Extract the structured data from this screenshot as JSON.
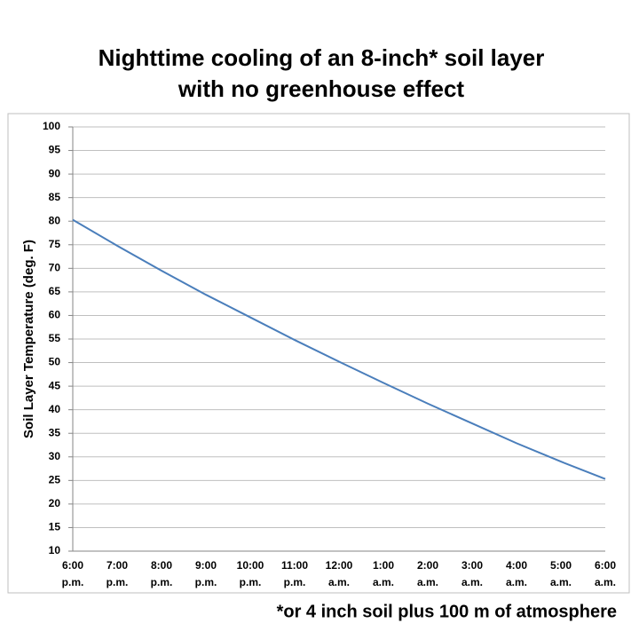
{
  "chart_data": {
    "type": "line",
    "title": [
      "Nighttime cooling of an 8-inch* soil layer",
      "with no greenhouse effect"
    ],
    "y_label": "Soil Layer Temperature (deg. F)",
    "footnote": "*or 4 inch soil plus 100 m of atmosphere",
    "categories": [
      "6:00\np.m.",
      "7:00\np.m.",
      "8:00\np.m.",
      "9:00\np.m.",
      "10:00\np.m.",
      "11:00\np.m.",
      "12:00\na.m.",
      "1:00\na.m.",
      "2:00\na.m.",
      "3:00\na.m.",
      "4:00\na.m.",
      "5:00\na.m.",
      "6:00\na.m."
    ],
    "values": [
      80.3,
      74.8,
      69.5,
      64.4,
      59.6,
      54.8,
      50.2,
      45.7,
      41.3,
      37.1,
      32.9,
      29.0,
      25.3
    ],
    "color": "#4a7ebb",
    "ylim": [
      10,
      100
    ],
    "yticks": [
      10,
      15,
      20,
      25,
      30,
      35,
      40,
      45,
      50,
      55,
      60,
      65,
      70,
      75,
      80,
      85,
      90,
      95,
      100
    ],
    "grid": true
  }
}
